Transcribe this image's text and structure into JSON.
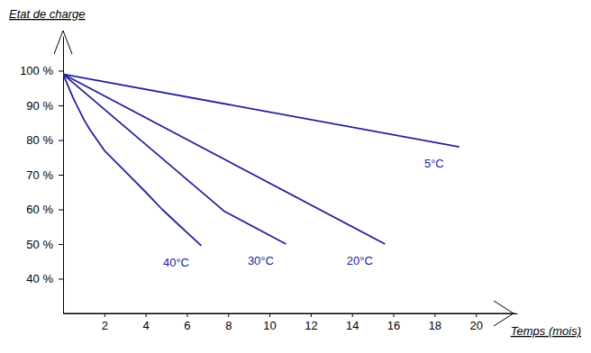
{
  "chart_data": {
    "type": "line",
    "x_label": "Temps (mois)",
    "y_label": "Etat de charge",
    "xlim": [
      0,
      22
    ],
    "ylim": [
      30,
      110
    ],
    "xticks": [
      2,
      4,
      6,
      8,
      10,
      12,
      14,
      16,
      18,
      20
    ],
    "yticks": [
      {
        "value": 40,
        "label": "40 %"
      },
      {
        "value": 50,
        "label": "50 %"
      },
      {
        "value": 60,
        "label": "60 %"
      },
      {
        "value": 70,
        "label": "70 %"
      },
      {
        "value": 80,
        "label": "80 %"
      },
      {
        "value": 90,
        "label": "90 %"
      },
      {
        "value": 100,
        "label": "100 %"
      }
    ],
    "grid": false,
    "series": [
      {
        "name": "5°C",
        "color": "#22229a",
        "x": [
          0,
          19.2
        ],
        "values": [
          99,
          78
        ]
      },
      {
        "name": "20°C",
        "color": "#22229a",
        "x": [
          0,
          15.6
        ],
        "values": [
          99,
          50
        ]
      },
      {
        "name": "30°C",
        "color": "#22229a",
        "x": [
          0,
          7.8,
          10.8
        ],
        "values": [
          99,
          59.5,
          50
        ]
      },
      {
        "name": "40°C",
        "color": "#22229a",
        "x": [
          0,
          0.5,
          1,
          1.3,
          2,
          3,
          4,
          4.8,
          5.7,
          6.7
        ],
        "values": [
          99,
          92,
          86,
          83,
          77,
          71,
          65,
          60,
          55,
          49.5
        ]
      }
    ]
  }
}
